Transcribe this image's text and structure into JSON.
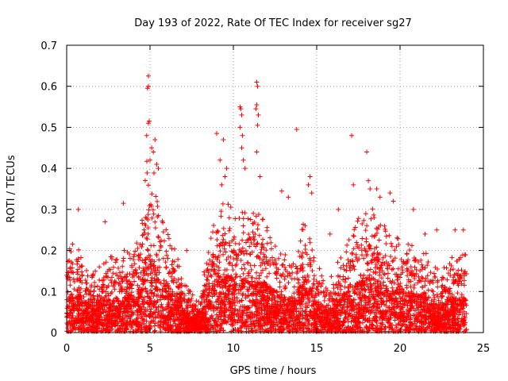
{
  "chart_data": {
    "type": "scatter",
    "title": "Day 193 of 2022, Rate Of TEC Index for receiver sg27",
    "xlabel": "GPS time / hours",
    "ylabel": "ROTI / TECUs",
    "xlim": [
      0,
      25
    ],
    "ylim": [
      0,
      0.7
    ],
    "xticks": [
      0,
      5,
      10,
      15,
      20,
      25
    ],
    "yticks": [
      0,
      0.1,
      0.2,
      0.3,
      0.4,
      0.5,
      0.6,
      0.7
    ],
    "xtick_labels": [
      "0",
      "5",
      "10",
      "15",
      "20",
      "25"
    ],
    "ytick_labels": [
      "0",
      "0.1",
      "0.2",
      "0.3",
      "0.4",
      "0.5",
      "0.6",
      "0.7"
    ],
    "grid": true,
    "marker": "+",
    "color": "#ff0000",
    "envelope": {
      "description": "approximate upper envelope of the dense point cloud (hour, ROTI)",
      "x": [
        0,
        0.5,
        1,
        1.5,
        2,
        2.5,
        3,
        3.5,
        4,
        4.5,
        4.8,
        5.2,
        5.6,
        6,
        6.5,
        7,
        7.5,
        8,
        8.5,
        9,
        9.4,
        9.8,
        10.2,
        10.6,
        11,
        11.4,
        11.8,
        12.2,
        12.6,
        13,
        13.5,
        14,
        14.4,
        14.8,
        15.2,
        15.6,
        16,
        16.5,
        17,
        17.5,
        18,
        18.5,
        19,
        19.5,
        20,
        20.5,
        21,
        21.5,
        22,
        22.5,
        23,
        23.5,
        24
      ],
      "y": [
        0.2,
        0.22,
        0.18,
        0.14,
        0.17,
        0.18,
        0.19,
        0.2,
        0.2,
        0.27,
        0.45,
        0.4,
        0.3,
        0.26,
        0.2,
        0.13,
        0.1,
        0.08,
        0.22,
        0.3,
        0.32,
        0.32,
        0.28,
        0.3,
        0.3,
        0.3,
        0.28,
        0.24,
        0.22,
        0.2,
        0.2,
        0.25,
        0.3,
        0.2,
        0.16,
        0.12,
        0.14,
        0.2,
        0.26,
        0.28,
        0.3,
        0.3,
        0.26,
        0.24,
        0.24,
        0.22,
        0.2,
        0.2,
        0.16,
        0.15,
        0.18,
        0.2,
        0.2
      ]
    },
    "outliers": [
      {
        "x": 4.9,
        "y": 0.625
      },
      {
        "x": 4.9,
        "y": 0.6
      },
      {
        "x": 4.85,
        "y": 0.595
      },
      {
        "x": 4.95,
        "y": 0.515
      },
      {
        "x": 4.9,
        "y": 0.51
      },
      {
        "x": 4.8,
        "y": 0.48
      },
      {
        "x": 5.3,
        "y": 0.47
      },
      {
        "x": 5.1,
        "y": 0.45
      },
      {
        "x": 5.2,
        "y": 0.44
      },
      {
        "x": 5.4,
        "y": 0.41
      },
      {
        "x": 5.0,
        "y": 0.42
      },
      {
        "x": 5.5,
        "y": 0.4
      },
      {
        "x": 9.0,
        "y": 0.485
      },
      {
        "x": 9.4,
        "y": 0.47
      },
      {
        "x": 9.2,
        "y": 0.42
      },
      {
        "x": 9.6,
        "y": 0.4
      },
      {
        "x": 9.5,
        "y": 0.38
      },
      {
        "x": 9.3,
        "y": 0.36
      },
      {
        "x": 10.4,
        "y": 0.55
      },
      {
        "x": 10.45,
        "y": 0.545
      },
      {
        "x": 10.5,
        "y": 0.53
      },
      {
        "x": 10.4,
        "y": 0.5
      },
      {
        "x": 10.55,
        "y": 0.48
      },
      {
        "x": 10.5,
        "y": 0.45
      },
      {
        "x": 10.6,
        "y": 0.42
      },
      {
        "x": 10.7,
        "y": 0.4
      },
      {
        "x": 11.4,
        "y": 0.61
      },
      {
        "x": 11.45,
        "y": 0.6
      },
      {
        "x": 11.4,
        "y": 0.555
      },
      {
        "x": 11.35,
        "y": 0.545
      },
      {
        "x": 11.5,
        "y": 0.53
      },
      {
        "x": 11.45,
        "y": 0.505
      },
      {
        "x": 11.4,
        "y": 0.44
      },
      {
        "x": 11.6,
        "y": 0.38
      },
      {
        "x": 13.8,
        "y": 0.495
      },
      {
        "x": 12.9,
        "y": 0.345
      },
      {
        "x": 13.3,
        "y": 0.33
      },
      {
        "x": 14.6,
        "y": 0.38
      },
      {
        "x": 14.5,
        "y": 0.36
      },
      {
        "x": 14.7,
        "y": 0.34
      },
      {
        "x": 17.1,
        "y": 0.48
      },
      {
        "x": 17.2,
        "y": 0.36
      },
      {
        "x": 18.0,
        "y": 0.44
      },
      {
        "x": 18.1,
        "y": 0.37
      },
      {
        "x": 18.2,
        "y": 0.35
      },
      {
        "x": 18.6,
        "y": 0.35
      },
      {
        "x": 18.8,
        "y": 0.33
      },
      {
        "x": 19.4,
        "y": 0.34
      },
      {
        "x": 19.6,
        "y": 0.32
      },
      {
        "x": 3.4,
        "y": 0.315
      },
      {
        "x": 0.7,
        "y": 0.3
      },
      {
        "x": 2.3,
        "y": 0.27
      },
      {
        "x": 20.8,
        "y": 0.3
      },
      {
        "x": 22.2,
        "y": 0.25
      },
      {
        "x": 23.3,
        "y": 0.25
      },
      {
        "x": 23.8,
        "y": 0.25
      },
      {
        "x": 21.5,
        "y": 0.24
      },
      {
        "x": 16.3,
        "y": 0.3
      },
      {
        "x": 15.8,
        "y": 0.24
      },
      {
        "x": 7.2,
        "y": 0.2
      }
    ]
  }
}
